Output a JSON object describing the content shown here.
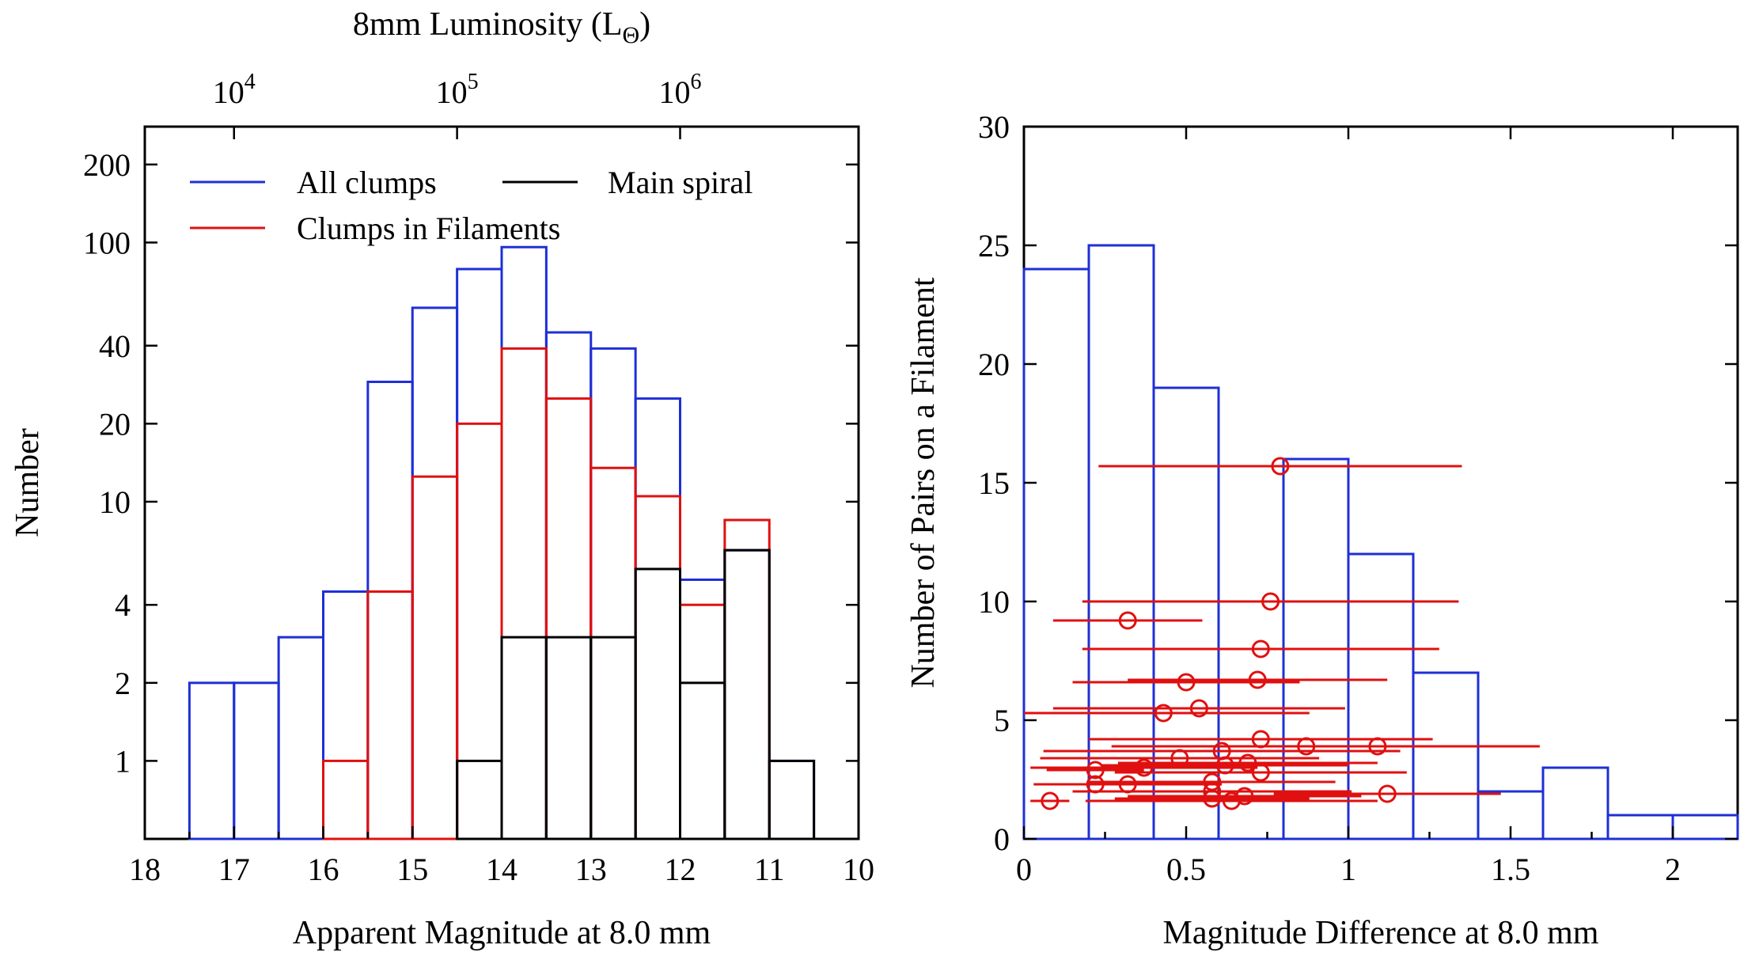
{
  "chart_data": [
    {
      "type": "bar",
      "subtype": "step-histogram",
      "xlabel": "Apparent Magnitude at 8.0 mm",
      "ylabel": "Number",
      "top_xlabel": "8mm Luminosity (L",
      "top_xlabel_sub": "Θ",
      "top_xlabel_close": ")",
      "xlim": [
        18,
        10
      ],
      "ylim": [
        0.5,
        280
      ],
      "yscale": "log",
      "x_ticks": [
        "18",
        "17",
        "16",
        "15",
        "14",
        "13",
        "12",
        "11",
        "10"
      ],
      "y_ticks": [
        "1",
        "2",
        "4",
        "10",
        "20",
        "40",
        "100",
        "200"
      ],
      "top_ticks": [
        {
          "mag": 17.0,
          "base": "10",
          "exp": "4"
        },
        {
          "mag": 14.5,
          "base": "10",
          "exp": "5"
        },
        {
          "mag": 12.0,
          "base": "10",
          "exp": "6"
        }
      ],
      "bin_edges": [
        17.5,
        17.0,
        16.5,
        16.0,
        15.5,
        15.0,
        14.5,
        14.0,
        13.5,
        13.0,
        12.5,
        12.0,
        11.5,
        11.0,
        10.5
      ],
      "series": [
        {
          "name": "All clumps",
          "color": "#1f2fd6",
          "values": [
            2,
            2,
            3,
            4.5,
            29,
            56,
            79,
            96,
            45,
            39,
            25,
            5,
            6.5,
            1
          ]
        },
        {
          "name": "Clumps in Filaments",
          "color": "#e01010",
          "values": [
            0,
            0,
            0,
            1,
            4.5,
            12.5,
            20,
            39,
            25,
            13.5,
            10.5,
            4,
            8.5,
            0
          ]
        },
        {
          "name": "Main spiral",
          "color": "#000000",
          "values": [
            0,
            0,
            0,
            0,
            0,
            0,
            1,
            3,
            3,
            3,
            5.5,
            2,
            6.5,
            1
          ]
        }
      ],
      "legend": "top-left"
    },
    {
      "type": "bar",
      "subtype": "step-histogram-with-points",
      "xlabel": "Magnitude Difference at 8.0 mm",
      "ylabel": "Number of Pairs on a Filament",
      "xlim": [
        0,
        2.2
      ],
      "ylim": [
        0,
        30
      ],
      "x_ticks": [
        "0",
        "0.5",
        "1",
        "1.5",
        "2"
      ],
      "y_ticks": [
        "0",
        "5",
        "10",
        "15",
        "20",
        "25",
        "30"
      ],
      "bin_edges": [
        0,
        0.2,
        0.4,
        0.6,
        0.8,
        1.0,
        1.2,
        1.4,
        1.6,
        1.8,
        2.0,
        2.2
      ],
      "values": [
        24,
        25,
        19,
        10,
        16,
        12,
        7,
        2,
        3,
        1,
        1
      ],
      "hist_color": "#1f2fd6",
      "points_color": "#e01010",
      "points": [
        {
          "x": 0.79,
          "y": 15.7,
          "err": 0.56
        },
        {
          "x": 0.76,
          "y": 10.0,
          "err": 0.58
        },
        {
          "x": 0.32,
          "y": 9.2,
          "err": 0.23
        },
        {
          "x": 0.73,
          "y": 8.0,
          "err": 0.55
        },
        {
          "x": 0.72,
          "y": 6.7,
          "err": 0.4
        },
        {
          "x": 0.5,
          "y": 6.6,
          "err": 0.35
        },
        {
          "x": 0.54,
          "y": 5.5,
          "err": 0.45
        },
        {
          "x": 0.43,
          "y": 5.3,
          "err": 0.45
        },
        {
          "x": 0.73,
          "y": 4.2,
          "err": 0.53
        },
        {
          "x": 0.87,
          "y": 3.9,
          "err": 0.6
        },
        {
          "x": 1.09,
          "y": 3.9,
          "err": 0.5
        },
        {
          "x": 0.61,
          "y": 3.7,
          "err": 0.55
        },
        {
          "x": 0.48,
          "y": 3.4,
          "err": 0.43
        },
        {
          "x": 0.69,
          "y": 3.2,
          "err": 0.4
        },
        {
          "x": 0.62,
          "y": 3.1,
          "err": 0.38
        },
        {
          "x": 0.37,
          "y": 3.0,
          "err": 0.35
        },
        {
          "x": 0.22,
          "y": 2.9,
          "err": 0.15
        },
        {
          "x": 0.73,
          "y": 2.8,
          "err": 0.45
        },
        {
          "x": 0.58,
          "y": 2.4,
          "err": 0.38
        },
        {
          "x": 0.22,
          "y": 2.3,
          "err": 0.16
        },
        {
          "x": 0.32,
          "y": 2.3,
          "err": 0.29
        },
        {
          "x": 0.58,
          "y": 2.0,
          "err": 0.43
        },
        {
          "x": 1.12,
          "y": 1.9,
          "err": 0.35
        },
        {
          "x": 0.58,
          "y": 1.7,
          "err": 0.3
        },
        {
          "x": 0.68,
          "y": 1.8,
          "err": 0.36
        },
        {
          "x": 0.64,
          "y": 1.6,
          "err": 0.45
        },
        {
          "x": 0.08,
          "y": 1.6,
          "err": 0.06
        }
      ]
    }
  ]
}
